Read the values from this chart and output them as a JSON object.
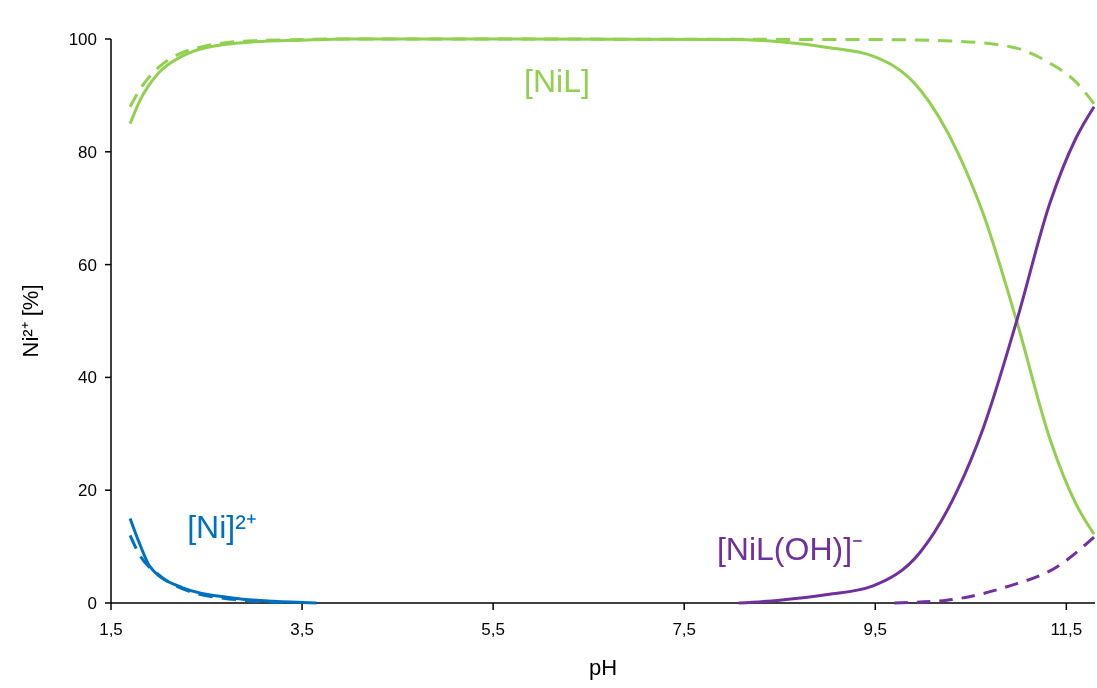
{
  "chart_data": {
    "type": "line",
    "xlabel": "pH",
    "ylabel": "Ni²⁺  [%]",
    "xlim": [
      1.5,
      11.8
    ],
    "xticks": [
      {
        "value": 1.5,
        "label": "1,5"
      },
      {
        "value": 3.5,
        "label": "3,5"
      },
      {
        "value": 5.5,
        "label": "5,5"
      },
      {
        "value": 7.5,
        "label": "7,5"
      },
      {
        "value": 9.5,
        "label": "9,5"
      },
      {
        "value": 11.5,
        "label": "11,5"
      }
    ],
    "ylim": [
      0,
      100
    ],
    "yticks": [
      0,
      20,
      40,
      60,
      80,
      100
    ],
    "grid": false,
    "marker": "none",
    "series": [
      {
        "name": "[NiL]",
        "color": "#92d050",
        "line_style": "solid",
        "x": [
          1.7,
          1.8,
          2.0,
          2.25,
          2.5,
          3.0,
          3.5,
          4.0,
          8.0,
          8.5,
          9.0,
          9.47,
          9.97,
          10.36,
          10.63,
          10.98,
          11.33,
          11.6,
          11.79
        ],
        "values": [
          85,
          89,
          94,
          97,
          98.5,
          99.5,
          99.8,
          100,
          99.9,
          99.5,
          98.5,
          97,
          91,
          80,
          69,
          50,
          29,
          17.6,
          12.2
        ]
      },
      {
        "color": "#92d050",
        "line_style": "dashed",
        "x": [
          1.7,
          1.8,
          2.0,
          2.5,
          3.0,
          4.0,
          9.5,
          10.36,
          10.95,
          11.33,
          11.6,
          11.79
        ],
        "values": [
          88,
          91,
          95,
          98.8,
          99.7,
          100,
          99.9,
          99.6,
          98.5,
          95.7,
          92.4,
          88.5
        ]
      },
      {
        "name": "[Ni]²⁺",
        "color": "#0070c0",
        "line_style": "solid",
        "x": [
          1.7,
          1.8,
          1.91,
          2.25,
          2.77,
          3.2,
          3.65
        ],
        "values": [
          15,
          10.5,
          6.4,
          2.7,
          0.9,
          0.3,
          0
        ]
      },
      {
        "color": "#0070c0",
        "line_style": "dashed",
        "x": [
          1.7,
          1.8,
          2.0,
          2.3,
          2.8,
          3.3
        ],
        "values": [
          12,
          8.5,
          5,
          2.2,
          0.6,
          0.1
        ]
      },
      {
        "name": "[NiL(OH)]⁻",
        "color": "#7030a0",
        "line_style": "solid",
        "x": [
          8.07,
          8.5,
          9.0,
          9.47,
          9.97,
          10.36,
          10.63,
          10.98,
          11.33,
          11.6,
          11.79
        ],
        "values": [
          0,
          0.5,
          1.5,
          3,
          9,
          20,
          31,
          50,
          71,
          82.4,
          88
        ]
      },
      {
        "color": "#7030a0",
        "line_style": "dashed",
        "x": [
          9.7,
          10.25,
          10.9,
          11.4,
          11.79
        ],
        "values": [
          0,
          0.5,
          3,
          6.4,
          11.7
        ]
      }
    ]
  }
}
